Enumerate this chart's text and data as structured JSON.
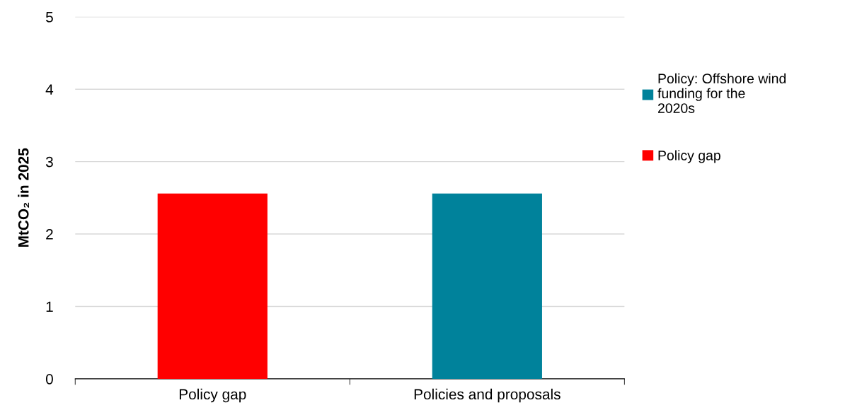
{
  "chart_data": {
    "type": "bar",
    "ylabel": "MtCO₂ in 2025",
    "categories": [
      "Policy gap",
      "Policies and proposals"
    ],
    "series": [
      {
        "name": "Policy: Offshore wind\nfunding for the\n2020s",
        "color": "#00829b",
        "values": [
          null,
          2.56
        ]
      },
      {
        "name": "Policy gap",
        "color": "#ff0000",
        "values": [
          2.56,
          null
        ]
      }
    ],
    "ylim": [
      0,
      5
    ],
    "yticks": [
      0,
      1,
      2,
      3,
      4,
      5
    ],
    "grid": "y",
    "legend": "right"
  }
}
